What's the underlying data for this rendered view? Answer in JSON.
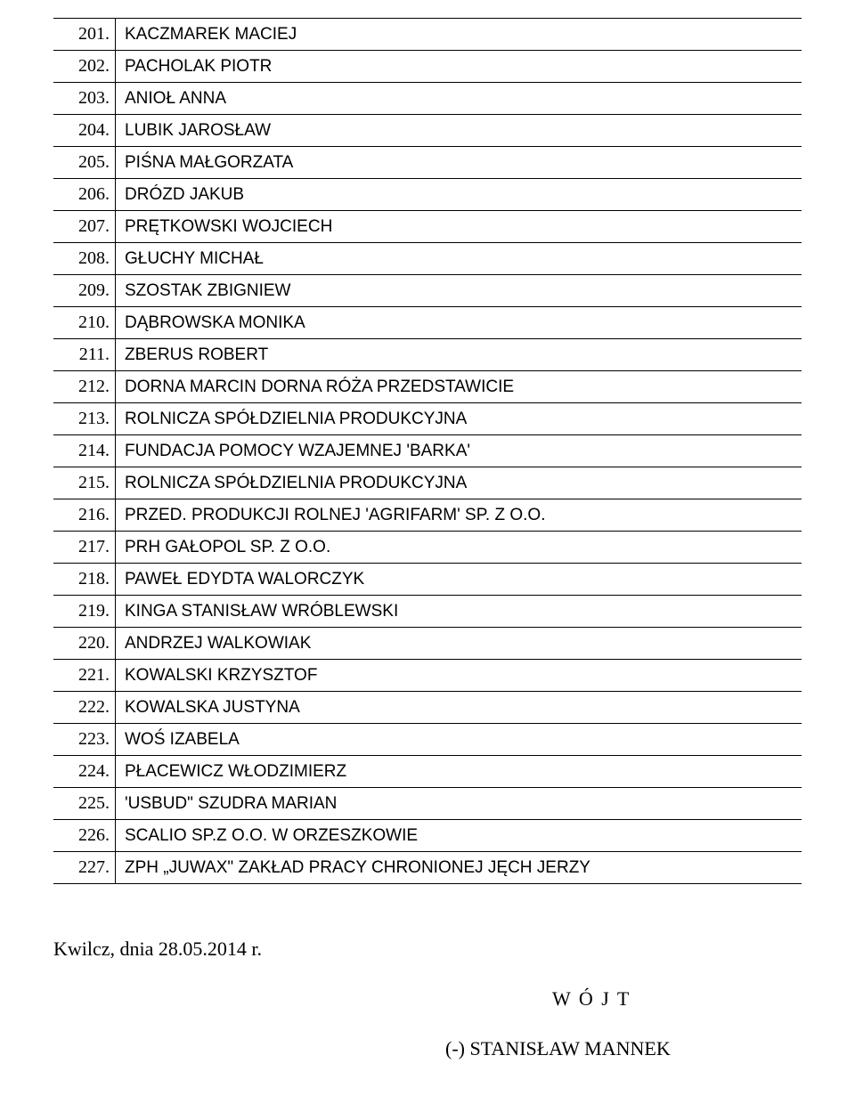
{
  "rows": [
    {
      "num": "201.",
      "name": "KACZMAREK MACIEJ"
    },
    {
      "num": "202.",
      "name": "PACHOLAK PIOTR"
    },
    {
      "num": "203.",
      "name": "ANIOŁ ANNA"
    },
    {
      "num": "204.",
      "name": "LUBIK JAROSŁAW"
    },
    {
      "num": "205.",
      "name": "PIŚNA MAŁGORZATA"
    },
    {
      "num": "206.",
      "name": "DRÓZD JAKUB"
    },
    {
      "num": "207.",
      "name": "PRĘTKOWSKI WOJCIECH"
    },
    {
      "num": "208.",
      "name": "GŁUCHY MICHAŁ"
    },
    {
      "num": "209.",
      "name": "SZOSTAK ZBIGNIEW"
    },
    {
      "num": "210.",
      "name": "DĄBROWSKA MONIKA"
    },
    {
      "num": "211.",
      "name": "ZBERUS ROBERT"
    },
    {
      "num": "212.",
      "name": "DORNA MARCIN DORNA RÓŻA PRZEDSTAWICIE"
    },
    {
      "num": "213.",
      "name": "ROLNICZA SPÓŁDZIELNIA PRODUKCYJNA"
    },
    {
      "num": "214.",
      "name": "FUNDACJA POMOCY WZAJEMNEJ 'BARKA'"
    },
    {
      "num": "215.",
      "name": "ROLNICZA SPÓŁDZIELNIA PRODUKCYJNA"
    },
    {
      "num": "216.",
      "name": "PRZED. PRODUKCJI ROLNEJ 'AGRIFARM' SP. Z O.O."
    },
    {
      "num": "217.",
      "name": "PRH GAŁOPOL SP. Z O.O."
    },
    {
      "num": "218.",
      "name": "PAWEŁ EDYDTA WALORCZYK"
    },
    {
      "num": "219.",
      "name": "KINGA STANISŁAW WRÓBLEWSKI"
    },
    {
      "num": "220.",
      "name": "ANDRZEJ WALKOWIAK"
    },
    {
      "num": "221.",
      "name": "KOWALSKI KRZYSZTOF"
    },
    {
      "num": "222.",
      "name": "KOWALSKA JUSTYNA"
    },
    {
      "num": "223.",
      "name": "WOŚ IZABELA"
    },
    {
      "num": "224.",
      "name": "PŁACEWICZ WŁODZIMIERZ"
    },
    {
      "num": "225.",
      "name": "'USBUD\" SZUDRA MARIAN"
    },
    {
      "num": "226.",
      "name": "SCALIO SP.Z O.O. W ORZESZKOWIE"
    },
    {
      "num": "227.",
      "name": "ZPH „JUWAX\" ZAKŁAD PRACY CHRONIONEJ JĘCH JERZY"
    }
  ],
  "footer": {
    "date": "Kwilcz, dnia 28.05.2014 r.",
    "title": "W Ó J T",
    "sign": "(-) STANISŁAW MANNEK"
  }
}
